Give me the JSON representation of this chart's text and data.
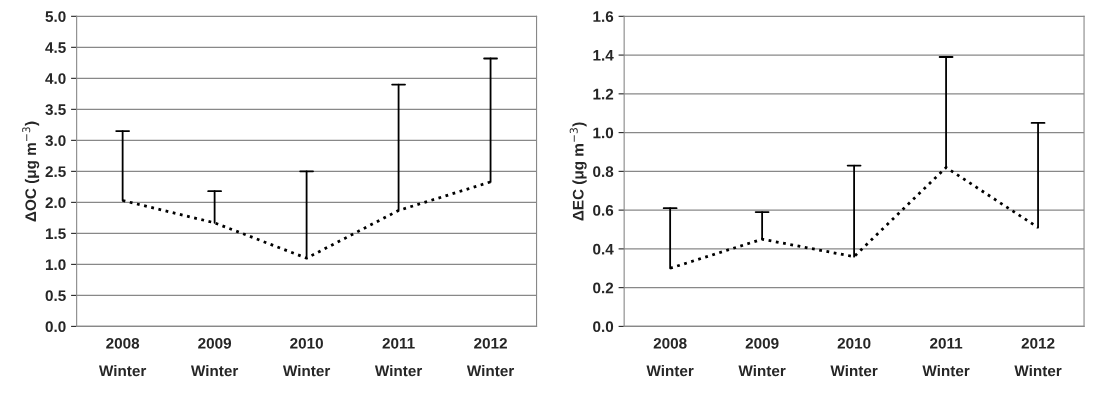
{
  "chart_data": [
    {
      "type": "line",
      "categories": [
        "2008\nWinter",
        "2009\nWinter",
        "2010\nWinter",
        "2011\nWinter",
        "2012\nWinter"
      ],
      "ylabel": "ΔOC (μg m$^{−3}$)",
      "series": [
        {
          "color": "#000000",
          "values": [
            2.03,
            1.67,
            1.1,
            1.87,
            2.33
          ],
          "errors": [
            [
              2.03,
              3.15
            ],
            [
              1.67,
              2.18
            ],
            [
              1.1,
              2.5
            ],
            [
              1.87,
              3.9
            ],
            [
              2.33,
              4.32
            ]
          ]
        }
      ],
      "ylim": [
        0,
        5
      ],
      "yticks": [
        {
          "value": 0,
          "label": "0.0"
        },
        {
          "value": 0.5,
          "label": "0.5"
        },
        {
          "value": 1,
          "label": "1.0"
        },
        {
          "value": 1.5,
          "label": "1.5"
        },
        {
          "value": 2,
          "label": "2.0"
        },
        {
          "value": 2.5,
          "label": "2.5"
        },
        {
          "value": 3,
          "label": "3.0"
        },
        {
          "value": 3.5,
          "label": "3.5"
        },
        {
          "value": 4,
          "label": "4.0"
        },
        {
          "value": 4.5,
          "label": "4.5"
        },
        {
          "value": 5,
          "label": "5.0"
        }
      ],
      "grid": "y",
      "line_style": "dotted",
      "marker": "none",
      "legend": false
    },
    {
      "type": "line",
      "categories": [
        "2008\nWinter",
        "2009\nWinter",
        "2010\nWinter",
        "2011\nWinter",
        "2012\nWinter"
      ],
      "ylabel": "ΔEC (μg m$^{−3}$)",
      "series": [
        {
          "color": "#000000",
          "values": [
            0.3,
            0.45,
            0.36,
            0.82,
            0.51
          ],
          "errors": [
            [
              0.3,
              0.61
            ],
            [
              0.45,
              0.59
            ],
            [
              0.36,
              0.83
            ],
            [
              0.82,
              1.39
            ],
            [
              0.51,
              1.05
            ]
          ]
        }
      ],
      "ylim": [
        0,
        1.6
      ],
      "yticks": [
        {
          "value": 0,
          "label": "0.0"
        },
        {
          "value": 0.2,
          "label": "0.2"
        },
        {
          "value": 0.4,
          "label": "0.4"
        },
        {
          "value": 0.6,
          "label": "0.6"
        },
        {
          "value": 0.8,
          "label": "0.8"
        },
        {
          "value": 1,
          "label": "1.0"
        },
        {
          "value": 1.2,
          "label": "1.2"
        },
        {
          "value": 1.4,
          "label": "1.4"
        },
        {
          "value": 1.6,
          "label": "1.6"
        }
      ],
      "grid": "y",
      "line_style": "dotted",
      "marker": "none",
      "legend": false
    }
  ]
}
